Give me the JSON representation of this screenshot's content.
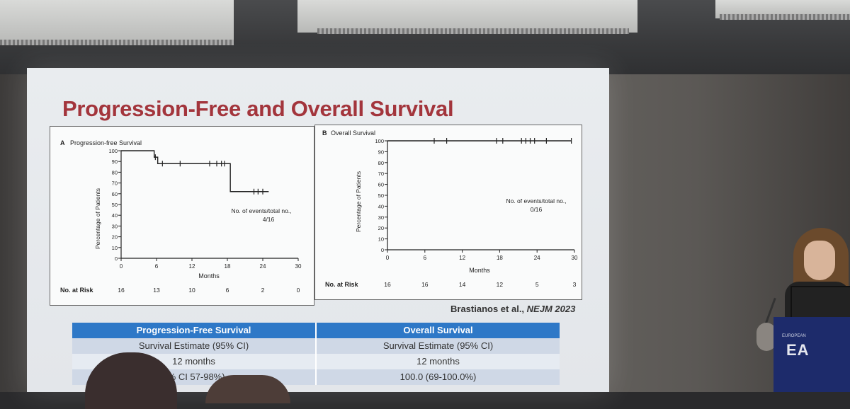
{
  "slide": {
    "title": "Progression-Free and Overall Survival",
    "citation_prefix": "Brastianos et al., ",
    "citation_journal": "NEJM 2023"
  },
  "panel_a": {
    "label": "A",
    "title": "Progression-free Survival",
    "ylabel": "Percentage of Patients",
    "xlabel": "Months",
    "events_label": "No. of events/total no.,",
    "events_value": "4/16",
    "risk_label": "No. at Risk",
    "y_ticks": [
      "0",
      "10",
      "20",
      "30",
      "40",
      "50",
      "60",
      "70",
      "80",
      "90",
      "100"
    ],
    "x_ticks": [
      "0",
      "6",
      "12",
      "18",
      "24",
      "30"
    ],
    "at_risk": [
      "16",
      "13",
      "10",
      "6",
      "2",
      "0"
    ]
  },
  "panel_b": {
    "label": "B",
    "title": "Overall Survival",
    "ylabel": "Percentage of Patients",
    "xlabel": "Months",
    "events_label": "No. of events/total no.,",
    "events_value": "0/16",
    "risk_label": "No. at Risk",
    "y_ticks": [
      "0",
      "10",
      "20",
      "30",
      "40",
      "50",
      "60",
      "70",
      "80",
      "90",
      "100"
    ],
    "x_ticks": [
      "0",
      "6",
      "12",
      "18",
      "24",
      "30"
    ],
    "at_risk": [
      "16",
      "16",
      "14",
      "12",
      "5",
      "3"
    ]
  },
  "table": {
    "headers": [
      "Progression-Free Survival",
      "Overall Survival"
    ],
    "rows": [
      [
        "Survival Estimate (95% CI)",
        "Survival Estimate (95% CI)"
      ],
      [
        "12 months",
        "12 months"
      ],
      [
        "5% CI 57-98%)",
        "100.0 (69-100.0%)"
      ]
    ]
  },
  "podium": {
    "small_text": "EUROPEAN",
    "big_text": "EA"
  },
  "chart_data": [
    {
      "type": "line",
      "title": "Progression-free Survival",
      "xlabel": "Months",
      "ylabel": "Percentage of Patients",
      "xlim": [
        0,
        30
      ],
      "ylim": [
        0,
        100
      ],
      "step": true,
      "x": [
        0,
        5,
        5.6,
        6.2,
        18.5,
        25
      ],
      "y": [
        100,
        100,
        94,
        88,
        62,
        62
      ],
      "censor_x": [
        5.8,
        7,
        10,
        15,
        16.2,
        17,
        17.5,
        22.5,
        23.2,
        24
      ],
      "events": "4/16",
      "at_risk": [
        16,
        13,
        10,
        6,
        2,
        0
      ]
    },
    {
      "type": "line",
      "title": "Overall Survival",
      "xlabel": "Months",
      "ylabel": "Percentage of Patients",
      "xlim": [
        0,
        30
      ],
      "ylim": [
        0,
        100
      ],
      "step": true,
      "x": [
        0,
        29.5
      ],
      "y": [
        100,
        100
      ],
      "censor_x": [
        7.5,
        9.5,
        17.5,
        18.5,
        21.5,
        22.2,
        22.9,
        23.6,
        25.5,
        29.5
      ],
      "events": "0/16",
      "at_risk": [
        16,
        16,
        14,
        12,
        5,
        3
      ]
    }
  ]
}
